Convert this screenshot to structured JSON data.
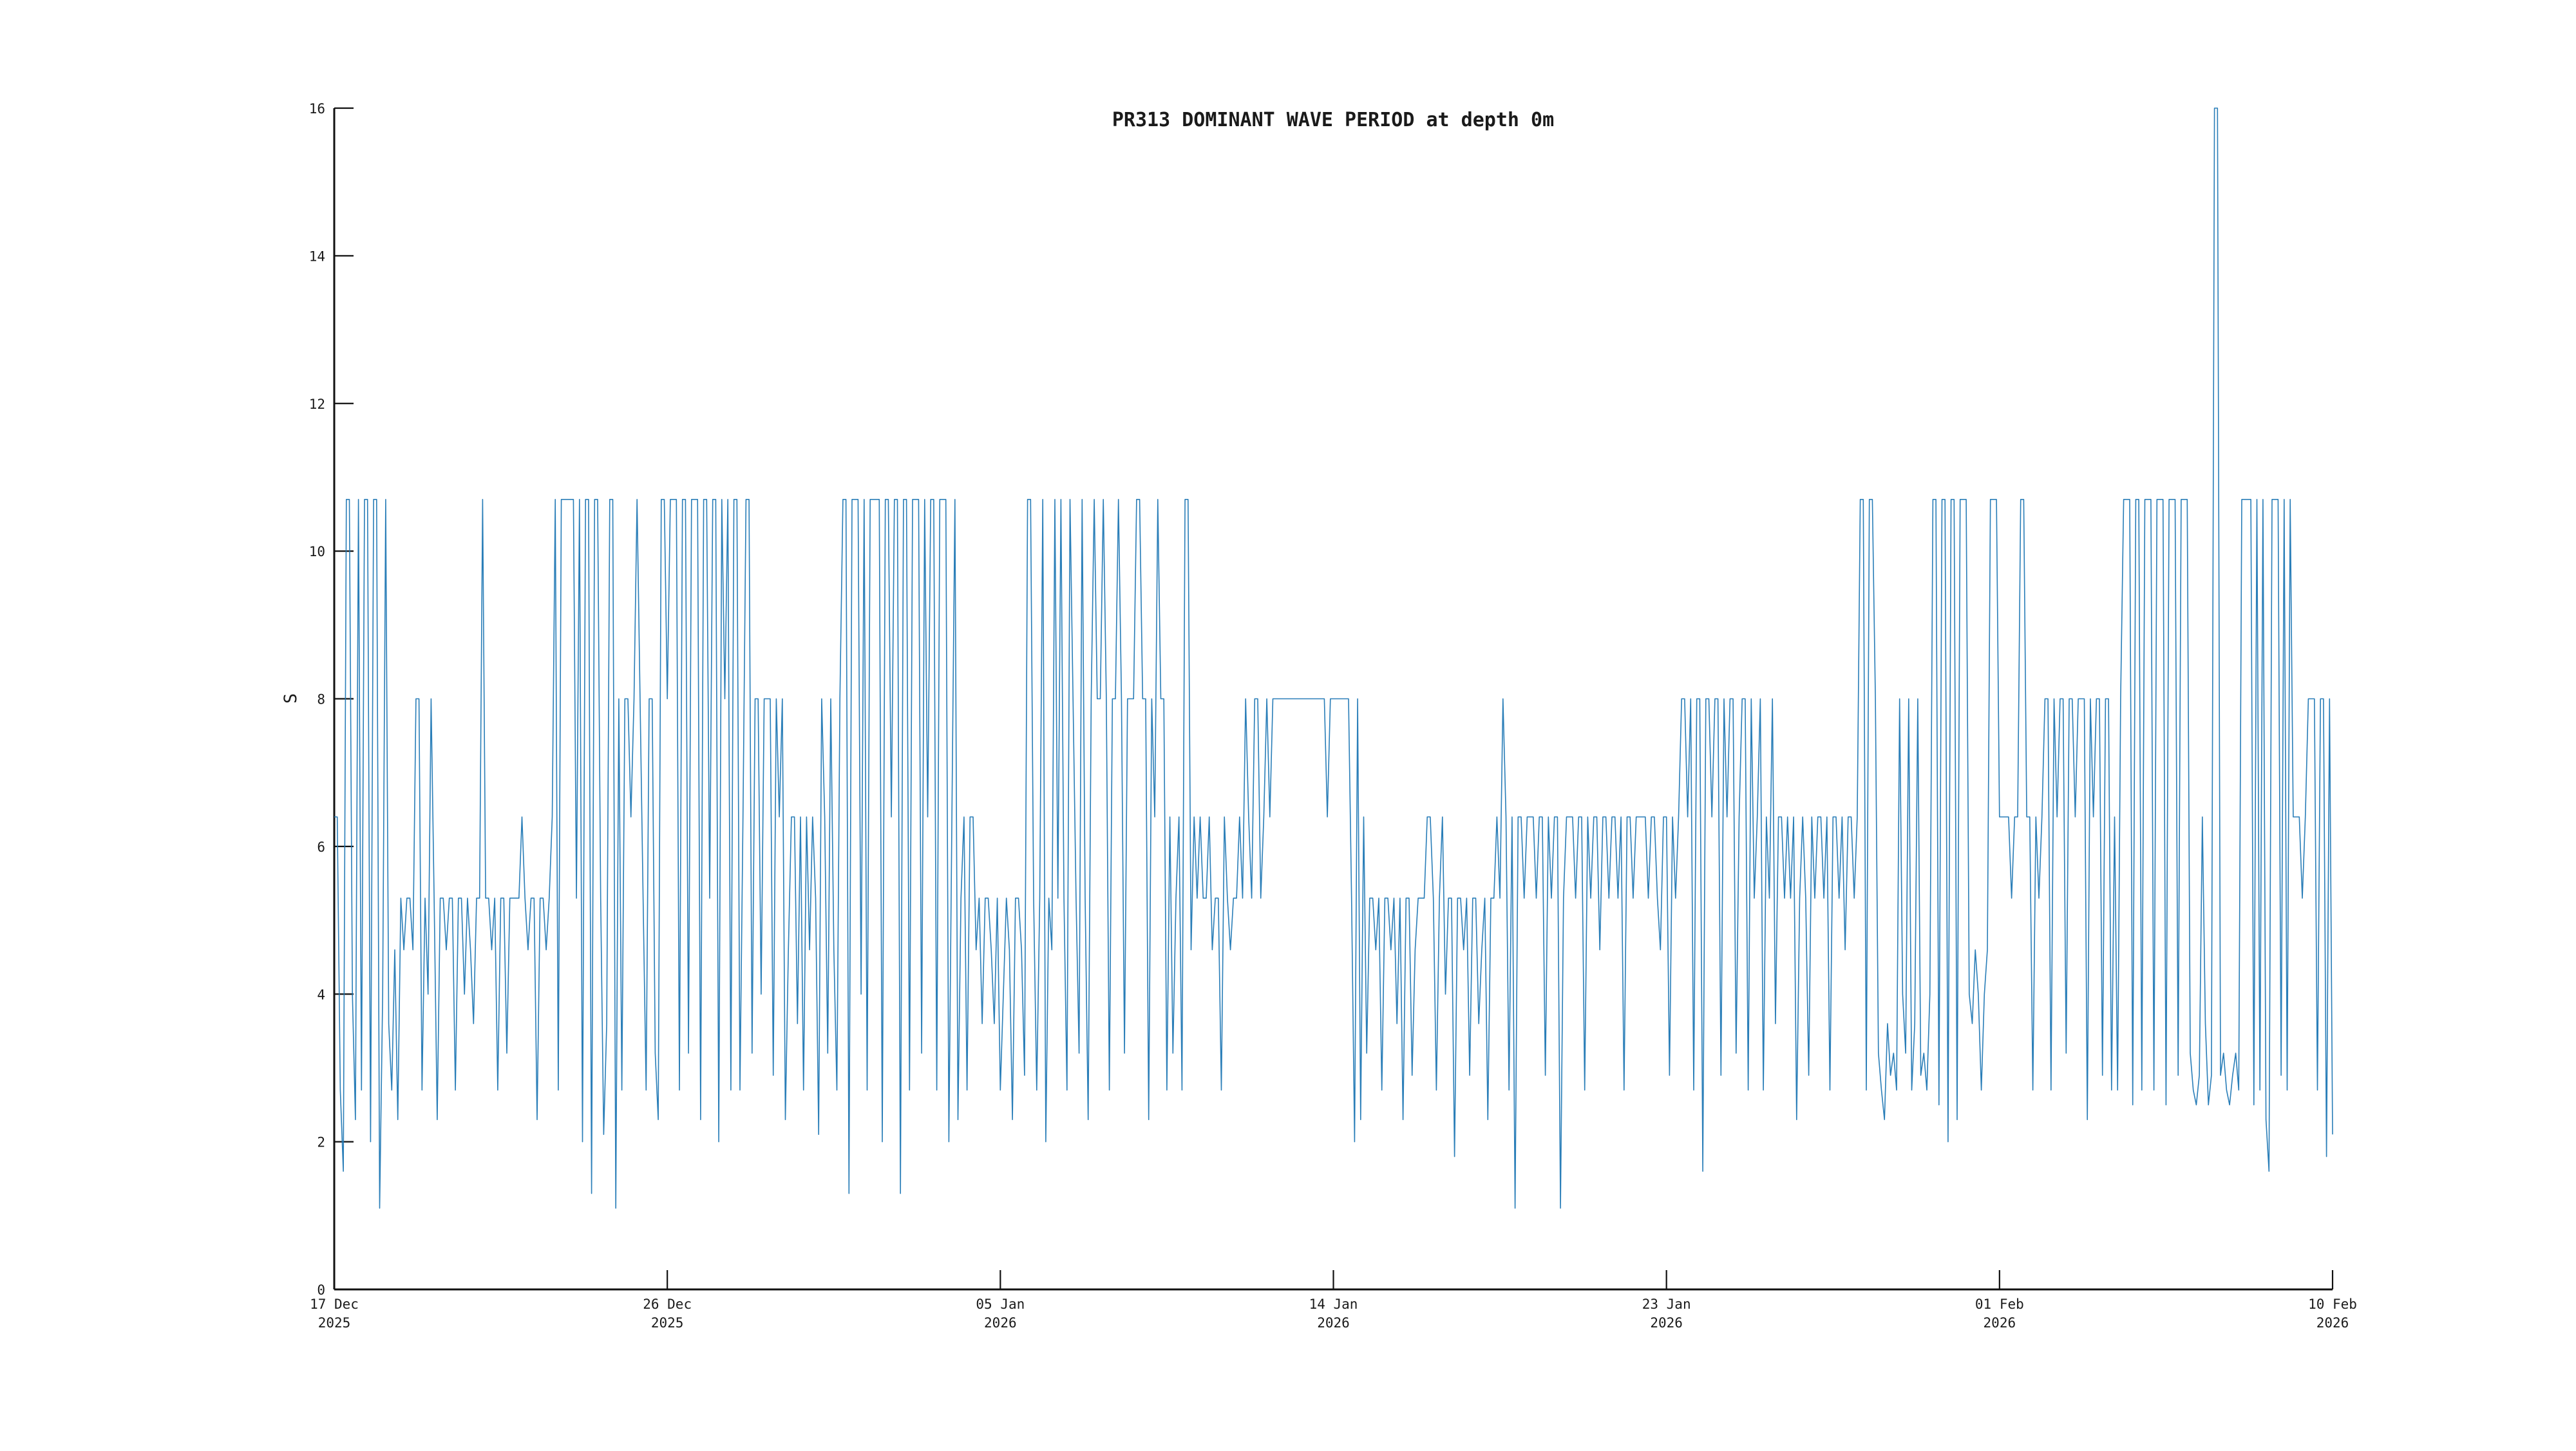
{
  "title": "PR313 DOMINANT WAVE PERIOD at depth 0m",
  "chart_data": {
    "type": "line",
    "title": "PR313 DOMINANT WAVE PERIOD at depth 0m",
    "xlabel": "",
    "ylabel": "S",
    "ylim": [
      0,
      16
    ],
    "yticks": [
      0,
      2,
      4,
      6,
      8,
      10,
      12,
      14,
      16
    ],
    "xticks": [
      {
        "label": "17 Dec",
        "year": "2025"
      },
      {
        "label": "26 Dec",
        "year": "2025"
      },
      {
        "label": "05 Jan",
        "year": "2026"
      },
      {
        "label": "14 Jan",
        "year": "2026"
      },
      {
        "label": "23 Jan",
        "year": "2026"
      },
      {
        "label": "01 Feb",
        "year": "2026"
      },
      {
        "label": "10 Feb",
        "year": "2026"
      }
    ],
    "x_range": [
      "2025-12-17",
      "2026-02-10"
    ],
    "samples_per_day": 12,
    "grid": false,
    "legend": null,
    "line_color": "#1f77b4",
    "line_width": 1.6,
    "values": [
      6.4,
      6.4,
      2.7,
      1.6,
      10.7,
      10.7,
      4,
      2.3,
      10.7,
      2.7,
      10.7,
      10.7,
      2,
      10.7,
      10.7,
      1.1,
      4,
      10.7,
      3.6,
      2.7,
      4.6,
      2.3,
      5.3,
      4.6,
      5.3,
      5.3,
      4.6,
      8,
      8,
      2.7,
      5.3,
      4,
      8,
      5.3,
      2.3,
      5.3,
      5.3,
      4.6,
      5.3,
      5.3,
      2.7,
      5.3,
      5.3,
      4,
      5.3,
      4.6,
      3.6,
      5.3,
      5.3,
      10.7,
      5.3,
      5.3,
      4.6,
      5.3,
      2.7,
      5.3,
      5.3,
      3.2,
      5.3,
      5.3,
      5.3,
      5.3,
      6.4,
      5.3,
      4.6,
      5.3,
      5.3,
      2.3,
      5.3,
      5.3,
      4.6,
      5.3,
      6.4,
      10.7,
      2.7,
      10.7,
      10.7,
      10.7,
      10.7,
      10.7,
      5.3,
      10.7,
      2,
      10.7,
      10.7,
      1.3,
      10.7,
      10.7,
      5.3,
      2.1,
      3.6,
      10.7,
      10.7,
      1.1,
      8,
      2.7,
      8,
      8,
      6.4,
      8,
      10.7,
      8,
      5.3,
      2.7,
      8,
      8,
      3.2,
      2.3,
      10.7,
      10.7,
      8,
      10.7,
      10.7,
      10.7,
      2.7,
      10.7,
      10.7,
      3.2,
      10.7,
      10.7,
      10.7,
      2.3,
      10.7,
      10.7,
      5.3,
      10.7,
      10.7,
      2,
      10.7,
      8,
      10.7,
      2.7,
      10.7,
      10.7,
      2.7,
      6.4,
      10.7,
      10.7,
      3.2,
      8,
      8,
      4,
      8,
      8,
      8,
      2.9,
      8,
      6.4,
      8,
      2.3,
      4.6,
      6.4,
      6.4,
      3.6,
      6.4,
      2.7,
      6.4,
      4.6,
      6.4,
      5.3,
      2.1,
      8,
      6.4,
      3.2,
      8,
      4.6,
      2.7,
      8,
      10.7,
      10.7,
      1.3,
      10.7,
      10.7,
      10.7,
      4,
      10.7,
      2.7,
      10.7,
      10.7,
      10.7,
      10.7,
      2,
      10.7,
      10.7,
      6.4,
      10.7,
      10.7,
      1.3,
      10.7,
      10.7,
      2.7,
      10.7,
      10.7,
      10.7,
      3.2,
      10.7,
      6.4,
      10.7,
      10.7,
      2.7,
      10.7,
      10.7,
      10.7,
      2,
      6.4,
      10.7,
      2.3,
      5.3,
      6.4,
      2.7,
      6.4,
      6.4,
      4.6,
      5.3,
      3.6,
      5.3,
      5.3,
      4.6,
      3.6,
      5.3,
      2.7,
      4,
      5.3,
      4.6,
      2.3,
      5.3,
      5.3,
      4.6,
      2.9,
      10.7,
      10.7,
      5.3,
      2.7,
      5.3,
      10.7,
      2,
      5.3,
      4.6,
      10.7,
      5.3,
      10.7,
      5.3,
      2.7,
      10.7,
      8,
      5.3,
      3.2,
      10.7,
      5.3,
      2.3,
      8,
      10.7,
      8,
      8,
      10.7,
      8,
      2.7,
      8,
      8,
      10.7,
      8,
      3.2,
      8,
      8,
      8,
      10.7,
      10.7,
      8,
      8,
      2.3,
      8,
      6.4,
      10.7,
      8,
      8,
      2.7,
      6.4,
      3.2,
      5.3,
      6.4,
      2.7,
      10.7,
      10.7,
      4.6,
      6.4,
      5.3,
      6.4,
      5.3,
      5.3,
      6.4,
      4.6,
      5.3,
      5.3,
      2.7,
      6.4,
      5.3,
      4.6,
      5.3,
      5.3,
      6.4,
      5.3,
      8,
      6.4,
      5.3,
      8,
      8,
      5.3,
      6.4,
      8,
      6.4,
      8,
      8,
      8,
      8,
      8,
      8,
      8,
      8,
      8,
      8,
      8,
      8,
      8,
      8,
      8,
      8,
      8,
      8,
      6.4,
      8,
      8,
      8,
      8,
      8,
      8,
      8,
      5.3,
      2,
      8,
      2.3,
      6.4,
      3.2,
      5.3,
      5.3,
      4.6,
      5.3,
      2.7,
      5.3,
      5.3,
      4.6,
      5.3,
      3.6,
      5.3,
      2.3,
      5.3,
      5.3,
      2.9,
      4.6,
      5.3,
      5.3,
      5.3,
      6.4,
      6.4,
      5.3,
      2.7,
      5.3,
      6.4,
      4,
      5.3,
      5.3,
      1.8,
      5.3,
      5.3,
      4.6,
      5.3,
      2.9,
      5.3,
      5.3,
      3.6,
      4.6,
      5.3,
      2.3,
      5.3,
      5.3,
      6.4,
      5.3,
      8,
      6.4,
      2.7,
      6.4,
      1.1,
      6.4,
      6.4,
      5.3,
      6.4,
      6.4,
      6.4,
      5.3,
      6.4,
      6.4,
      2.9,
      6.4,
      5.3,
      6.4,
      6.4,
      1.1,
      5.3,
      6.4,
      6.4,
      6.4,
      5.3,
      6.4,
      6.4,
      2.7,
      6.4,
      5.3,
      6.4,
      6.4,
      4.6,
      6.4,
      6.4,
      5.3,
      6.4,
      6.4,
      5.3,
      6.4,
      2.7,
      6.4,
      6.4,
      5.3,
      6.4,
      6.4,
      6.4,
      6.4,
      5.3,
      6.4,
      6.4,
      5.3,
      4.6,
      6.4,
      6.4,
      2.9,
      6.4,
      5.3,
      6.4,
      8,
      8,
      6.4,
      8,
      2.7,
      8,
      8,
      1.6,
      8,
      8,
      6.4,
      8,
      8,
      2.9,
      8,
      6.4,
      8,
      8,
      3.2,
      6.4,
      8,
      8,
      2.7,
      8,
      5.3,
      6.4,
      8,
      2.7,
      6.4,
      5.3,
      8,
      3.6,
      6.4,
      6.4,
      5.3,
      6.4,
      5.3,
      6.4,
      2.3,
      5.3,
      6.4,
      5.3,
      2.9,
      6.4,
      5.3,
      6.4,
      6.4,
      5.3,
      6.4,
      2.7,
      6.4,
      6.4,
      5.3,
      6.4,
      4.6,
      6.4,
      6.4,
      5.3,
      6.4,
      10.7,
      10.7,
      2.7,
      10.7,
      10.7,
      8,
      3.2,
      2.7,
      2.3,
      3.6,
      2.9,
      3.2,
      2.7,
      8,
      4,
      3.2,
      8,
      2.7,
      3.6,
      8,
      2.9,
      3.2,
      2.7,
      4,
      10.7,
      10.7,
      2.5,
      10.7,
      10.7,
      2,
      10.7,
      10.7,
      2.3,
      10.7,
      10.7,
      10.7,
      4,
      3.6,
      4.6,
      4,
      2.7,
      4,
      4.6,
      10.7,
      10.7,
      10.7,
      6.4,
      6.4,
      6.4,
      6.4,
      5.3,
      6.4,
      6.4,
      10.7,
      10.7,
      6.4,
      6.4,
      2.7,
      6.4,
      5.3,
      6.4,
      8,
      8,
      2.7,
      8,
      6.4,
      8,
      8,
      3.2,
      8,
      8,
      6.4,
      8,
      8,
      8,
      2.3,
      8,
      6.4,
      8,
      8,
      2.9,
      8,
      8,
      2.7,
      6.4,
      2.7,
      8,
      10.7,
      10.7,
      10.7,
      2.5,
      10.7,
      10.7,
      2.7,
      10.7,
      10.7,
      10.7,
      2.7,
      10.7,
      10.7,
      10.7,
      2.5,
      10.7,
      10.7,
      10.7,
      2.9,
      10.7,
      10.7,
      10.7,
      3.2,
      2.7,
      2.5,
      2.9,
      6.4,
      3.6,
      2.5,
      2.9,
      16,
      16,
      2.9,
      3.2,
      2.7,
      2.5,
      2.9,
      3.2,
      2.7,
      10.7,
      10.7,
      10.7,
      10.7,
      2.5,
      10.7,
      2.7,
      10.7,
      2.3,
      1.6,
      10.7,
      10.7,
      10.7,
      2.9,
      10.7,
      2.7,
      10.7,
      6.4,
      6.4,
      6.4,
      5.3,
      6.4,
      8,
      8,
      8,
      2.7,
      8,
      8,
      1.8,
      8,
      2.1
    ]
  }
}
